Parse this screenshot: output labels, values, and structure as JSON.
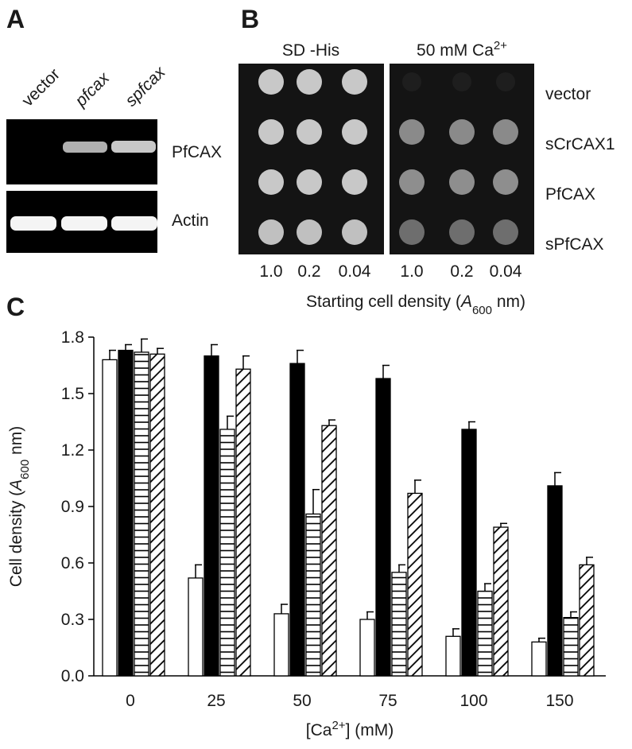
{
  "panel_a": {
    "label": "A",
    "lanes": [
      "vector",
      "pfcax",
      "spfcax"
    ],
    "bands": [
      "PfCAX",
      "Actin"
    ]
  },
  "panel_b": {
    "label": "B",
    "conditions": [
      {
        "text": "SD -His"
      },
      {
        "text": "50 mM Ca",
        "sup": "2+"
      }
    ],
    "strains": [
      "vector",
      "sCrCAX1",
      "PfCAX",
      "sPfCAX"
    ],
    "dilutions": [
      "1.0",
      "0.2",
      "0.04"
    ],
    "x_label": {
      "before": "Starting cell density (",
      "var": "A",
      "sub": "600",
      "after": " nm)"
    }
  },
  "chart_data": {
    "type": "bar",
    "label": "C",
    "y_label": {
      "before": "Cell density (",
      "var": "A",
      "sub": "600",
      "after": " nm)"
    },
    "x_label": {
      "before": "[Ca",
      "sup": "2+",
      "after": "] (mM)"
    },
    "categories": [
      "0",
      "25",
      "50",
      "75",
      "100",
      "150"
    ],
    "series": [
      {
        "fill": "solid",
        "color": "#ffffff",
        "values": [
          1.68,
          0.52,
          0.33,
          0.3,
          0.21,
          0.18
        ],
        "errors": [
          0.05,
          0.07,
          0.05,
          0.04,
          0.04,
          0.02
        ]
      },
      {
        "fill": "solid",
        "color": "#000000",
        "values": [
          1.73,
          1.7,
          1.66,
          1.58,
          1.31,
          1.01
        ],
        "errors": [
          0.03,
          0.06,
          0.07,
          0.07,
          0.04,
          0.07
        ]
      },
      {
        "fill": "horizontal-lines",
        "color": "#000000",
        "values": [
          1.72,
          1.31,
          0.86,
          0.55,
          0.45,
          0.31
        ],
        "errors": [
          0.07,
          0.07,
          0.13,
          0.04,
          0.04,
          0.03
        ]
      },
      {
        "fill": "diagonal-lines",
        "color": "#000000",
        "values": [
          1.71,
          1.63,
          1.33,
          0.97,
          0.79,
          0.59
        ],
        "errors": [
          0.03,
          0.07,
          0.03,
          0.07,
          0.02,
          0.04
        ]
      }
    ],
    "ylim": [
      0,
      1.8
    ],
    "yticks": [
      {
        "value": 0,
        "label": "0.0"
      },
      0.3,
      0.6,
      0.9,
      1.2,
      1.5,
      1.8
    ],
    "grid": false
  }
}
